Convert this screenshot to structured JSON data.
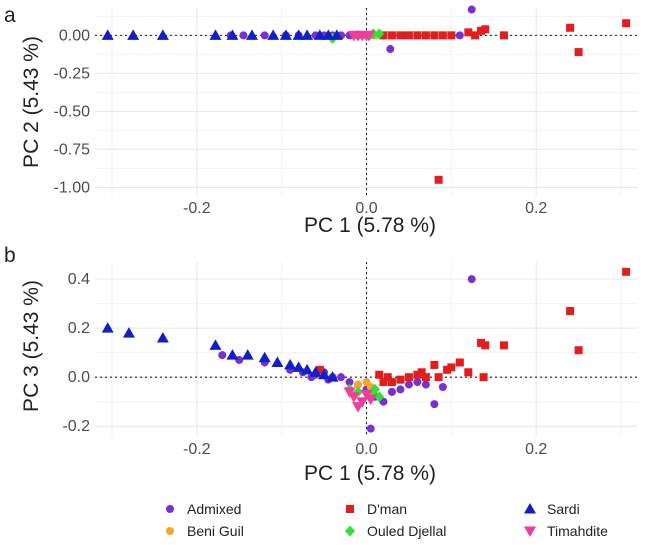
{
  "figure": {
    "legend": {
      "placement": "bottom",
      "entries": [
        {
          "name": "Admixed",
          "color": "#7b2fd0",
          "shape": "circle"
        },
        {
          "name": "Beni Guil",
          "color": "#f0a830",
          "shape": "circle"
        },
        {
          "name": "D'man",
          "color": "#e51c1c",
          "shape": "square"
        },
        {
          "name": "Ouled Djellal",
          "color": "#33e033",
          "shape": "diamond"
        },
        {
          "name": "Sardi",
          "color": "#1020c8",
          "shape": "triangle-up"
        },
        {
          "name": "Timahdite",
          "color": "#f03c9c",
          "shape": "triangle-down"
        }
      ]
    }
  },
  "chart_data": [
    {
      "type": "scatter",
      "panel_label": "a",
      "xlabel": "PC 1 (5.78 %)",
      "ylabel": "PC 2 (5.43 %)",
      "xlim": [
        -0.32,
        0.32
      ],
      "ylim": [
        -1.05,
        0.18
      ],
      "xticks": [
        -0.2,
        0.0,
        0.2
      ],
      "xtick_labels": [
        "-0.2",
        "0.0",
        "0.2"
      ],
      "yticks": [
        0.0,
        -0.25,
        -0.5,
        -0.75,
        -1.0
      ],
      "ytick_labels": [
        "0.00",
        "-0.25",
        "-0.50",
        "-0.75",
        "-1.00"
      ],
      "grid": true,
      "reference_lines": {
        "x": 0,
        "y": 0,
        "style": "dotted"
      },
      "series": [
        {
          "name": "Admixed",
          "points": [
            [
              0.124,
              0.17
            ],
            [
              0.028,
              -0.09
            ],
            [
              -0.16,
              0.0
            ],
            [
              -0.145,
              0.0
            ],
            [
              -0.12,
              0.0
            ],
            [
              -0.095,
              0.0
            ],
            [
              -0.08,
              0.0
            ],
            [
              -0.06,
              0.0
            ],
            [
              -0.05,
              0.0
            ],
            [
              -0.04,
              0.0
            ],
            [
              -0.03,
              0.0
            ],
            [
              -0.02,
              0.0
            ],
            [
              -0.01,
              0.0
            ],
            [
              0.0,
              0.0
            ],
            [
              0.02,
              0.0
            ],
            [
              0.03,
              0.0
            ],
            [
              0.045,
              0.0
            ],
            [
              0.06,
              0.0
            ],
            [
              0.07,
              0.0
            ],
            [
              0.08,
              0.0
            ],
            [
              0.1,
              0.0
            ],
            [
              0.11,
              0.0
            ]
          ]
        },
        {
          "name": "Beni Guil",
          "points": [
            [
              -0.002,
              0.0
            ],
            [
              0.005,
              0.0
            ],
            [
              0.01,
              0.0
            ]
          ]
        },
        {
          "name": "D'man",
          "points": [
            [
              0.306,
              0.08
            ],
            [
              0.24,
              0.05
            ],
            [
              0.25,
              -0.11
            ],
            [
              0.085,
              -0.95
            ],
            [
              0.162,
              0.0
            ],
            [
              0.14,
              0.04
            ],
            [
              0.135,
              0.03
            ],
            [
              0.128,
              0.0
            ],
            [
              0.12,
              0.02
            ],
            [
              0.1,
              0.0
            ],
            [
              0.09,
              0.0
            ],
            [
              0.08,
              0.0
            ],
            [
              0.07,
              0.0
            ],
            [
              0.06,
              0.0
            ],
            [
              0.05,
              0.0
            ],
            [
              0.04,
              0.0
            ],
            [
              0.03,
              0.0
            ],
            [
              0.02,
              0.0
            ]
          ]
        },
        {
          "name": "Ouled Djellal",
          "points": [
            [
              -0.04,
              -0.02
            ],
            [
              0.008,
              0.01
            ],
            [
              0.015,
              0.01
            ],
            [
              -0.01,
              0.0
            ]
          ]
        },
        {
          "name": "Sardi",
          "points": [
            [
              -0.305,
              0.0
            ],
            [
              -0.275,
              0.0
            ],
            [
              -0.24,
              0.0
            ],
            [
              -0.178,
              0.0
            ],
            [
              -0.158,
              0.0
            ],
            [
              -0.135,
              0.0
            ],
            [
              -0.11,
              0.0
            ],
            [
              -0.095,
              0.0
            ],
            [
              -0.08,
              0.0
            ],
            [
              -0.07,
              0.0
            ],
            [
              -0.055,
              0.0
            ],
            [
              -0.045,
              0.0
            ],
            [
              -0.035,
              0.0
            ]
          ]
        },
        {
          "name": "Timahdite",
          "points": [
            [
              -0.01,
              0.0
            ],
            [
              -0.005,
              0.0
            ],
            [
              0.0,
              0.0
            ],
            [
              0.003,
              0.0
            ],
            [
              -0.015,
              0.0
            ]
          ]
        }
      ]
    },
    {
      "type": "scatter",
      "panel_label": "b",
      "xlabel": "PC 1 (5.78 %)",
      "ylabel": "PC 3 (5.43 %)",
      "xlim": [
        -0.32,
        0.32
      ],
      "ylim": [
        -0.24,
        0.47
      ],
      "xticks": [
        -0.2,
        0.0,
        0.2
      ],
      "xtick_labels": [
        "-0.2",
        "0.0",
        "0.2"
      ],
      "yticks": [
        0.4,
        0.2,
        0.0,
        -0.2
      ],
      "ytick_labels": [
        "0.4",
        "0.2",
        "0.0",
        "-0.2"
      ],
      "grid": true,
      "reference_lines": {
        "x": 0,
        "y": 0,
        "style": "dotted"
      },
      "series": [
        {
          "name": "Admixed",
          "points": [
            [
              0.124,
              0.4
            ],
            [
              -0.17,
              0.09
            ],
            [
              -0.15,
              0.07
            ],
            [
              -0.12,
              0.06
            ],
            [
              -0.09,
              0.03
            ],
            [
              -0.075,
              0.02
            ],
            [
              -0.06,
              0.01
            ],
            [
              -0.05,
              0.02
            ],
            [
              -0.04,
              0.0
            ],
            [
              -0.03,
              0.0
            ],
            [
              -0.02,
              -0.02
            ],
            [
              -0.01,
              -0.03
            ],
            [
              0.0,
              -0.05
            ],
            [
              0.005,
              -0.21
            ],
            [
              0.01,
              -0.08
            ],
            [
              0.02,
              -0.1
            ],
            [
              0.03,
              -0.06
            ],
            [
              0.04,
              -0.05
            ],
            [
              0.05,
              -0.03
            ],
            [
              0.06,
              -0.02
            ],
            [
              0.07,
              -0.03
            ],
            [
              0.08,
              -0.11
            ],
            [
              0.09,
              -0.04
            ],
            [
              -0.065,
              0.0
            ],
            [
              -0.045,
              -0.01
            ]
          ]
        },
        {
          "name": "Beni Guil",
          "points": [
            [
              -0.01,
              -0.03
            ],
            [
              0.0,
              -0.02
            ],
            [
              0.005,
              -0.04
            ]
          ]
        },
        {
          "name": "D'man",
          "points": [
            [
              0.306,
              0.43
            ],
            [
              0.24,
              0.27
            ],
            [
              0.25,
              0.11
            ],
            [
              0.162,
              0.13
            ],
            [
              0.14,
              0.13
            ],
            [
              0.135,
              0.14
            ],
            [
              0.138,
              0.0
            ],
            [
              0.12,
              0.02
            ],
            [
              0.11,
              0.06
            ],
            [
              0.1,
              0.04
            ],
            [
              0.095,
              0.03
            ],
            [
              0.085,
              0.0
            ],
            [
              0.08,
              0.05
            ],
            [
              0.07,
              0.0
            ],
            [
              0.065,
              0.02
            ],
            [
              0.06,
              0.01
            ],
            [
              0.05,
              0.0
            ],
            [
              0.04,
              -0.01
            ],
            [
              0.03,
              -0.02
            ],
            [
              0.025,
              0.0
            ],
            [
              0.02,
              -0.02
            ],
            [
              0.015,
              0.01
            ],
            [
              -0.055,
              0.03
            ]
          ]
        },
        {
          "name": "Ouled Djellal",
          "points": [
            [
              -0.02,
              -0.05
            ],
            [
              -0.01,
              -0.06
            ],
            [
              0.005,
              -0.07
            ],
            [
              0.01,
              -0.05
            ],
            [
              0.015,
              -0.08
            ]
          ]
        },
        {
          "name": "Sardi",
          "points": [
            [
              -0.305,
              0.2
            ],
            [
              -0.28,
              0.18
            ],
            [
              -0.24,
              0.16
            ],
            [
              -0.178,
              0.13
            ],
            [
              -0.158,
              0.09
            ],
            [
              -0.14,
              0.09
            ],
            [
              -0.12,
              0.08
            ],
            [
              -0.105,
              0.06
            ],
            [
              -0.09,
              0.05
            ],
            [
              -0.08,
              0.04
            ],
            [
              -0.07,
              0.03
            ],
            [
              -0.06,
              0.02
            ],
            [
              -0.05,
              0.01
            ],
            [
              -0.04,
              0.0
            ]
          ]
        },
        {
          "name": "Timahdite",
          "points": [
            [
              -0.02,
              -0.06
            ],
            [
              -0.015,
              -0.08
            ],
            [
              -0.01,
              -0.12
            ],
            [
              -0.005,
              -0.1
            ],
            [
              0.0,
              -0.07
            ],
            [
              0.005,
              -0.09
            ]
          ]
        }
      ]
    }
  ]
}
